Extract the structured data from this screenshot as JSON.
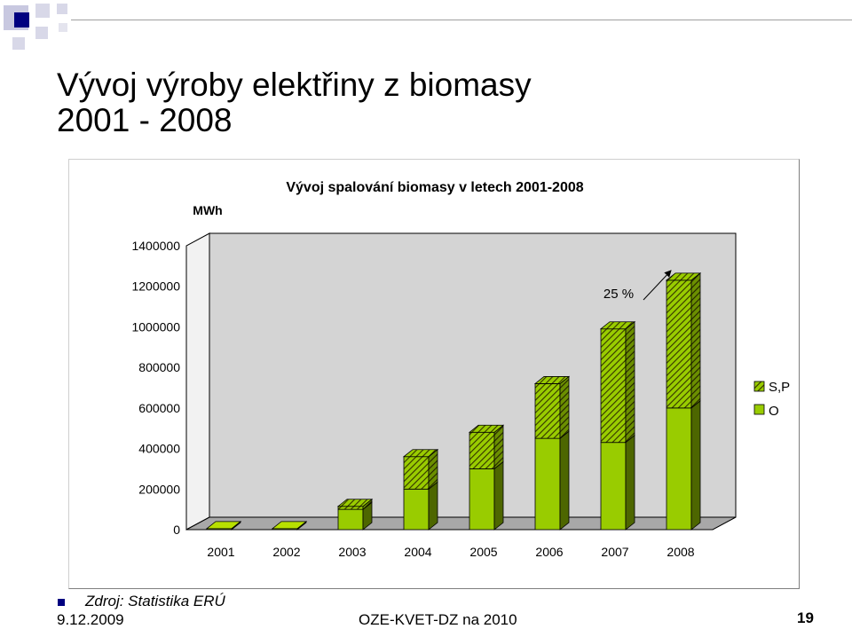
{
  "slide": {
    "title_line1": "Vývoj výroby elektřiny z biomasy",
    "title_line2": "2001 - 2008",
    "source_note": "Zdroj: Statistika ERÚ",
    "date": "9.12.2009",
    "footer_center": "OZE-KVET-DZ na 2010",
    "page_number": "19",
    "colors": {
      "brand_blue": "#000080",
      "deco_gray": "#c0c0d8",
      "bar_solid": "#99cc00",
      "bar_side": "#4d6600"
    }
  },
  "chart_data": {
    "type": "bar",
    "stacked": true,
    "title": "Vývoj spalování biomasy v letech 2001-2008",
    "ylabel": "MWh",
    "categories": [
      "2001",
      "2002",
      "2003",
      "2004",
      "2005",
      "2006",
      "2007",
      "2008"
    ],
    "series": [
      {
        "name": "O",
        "values": [
          5000,
          5000,
          100000,
          200000,
          300000,
          450000,
          430000,
          600000
        ],
        "fill": "solid",
        "color": "#99cc00"
      },
      {
        "name": "S,P",
        "values": [
          0,
          0,
          15000,
          160000,
          180000,
          270000,
          560000,
          630000
        ],
        "fill": "hatched",
        "color": "#669900"
      }
    ],
    "ylim": [
      0,
      1400000
    ],
    "yticks": [
      "0",
      "200000",
      "400000",
      "600000",
      "800000",
      "1000000",
      "1200000",
      "1400000"
    ],
    "annotation": {
      "text": "25 %",
      "points_to": "2008"
    },
    "grid": false,
    "legend": "right",
    "chart_3d": true
  }
}
